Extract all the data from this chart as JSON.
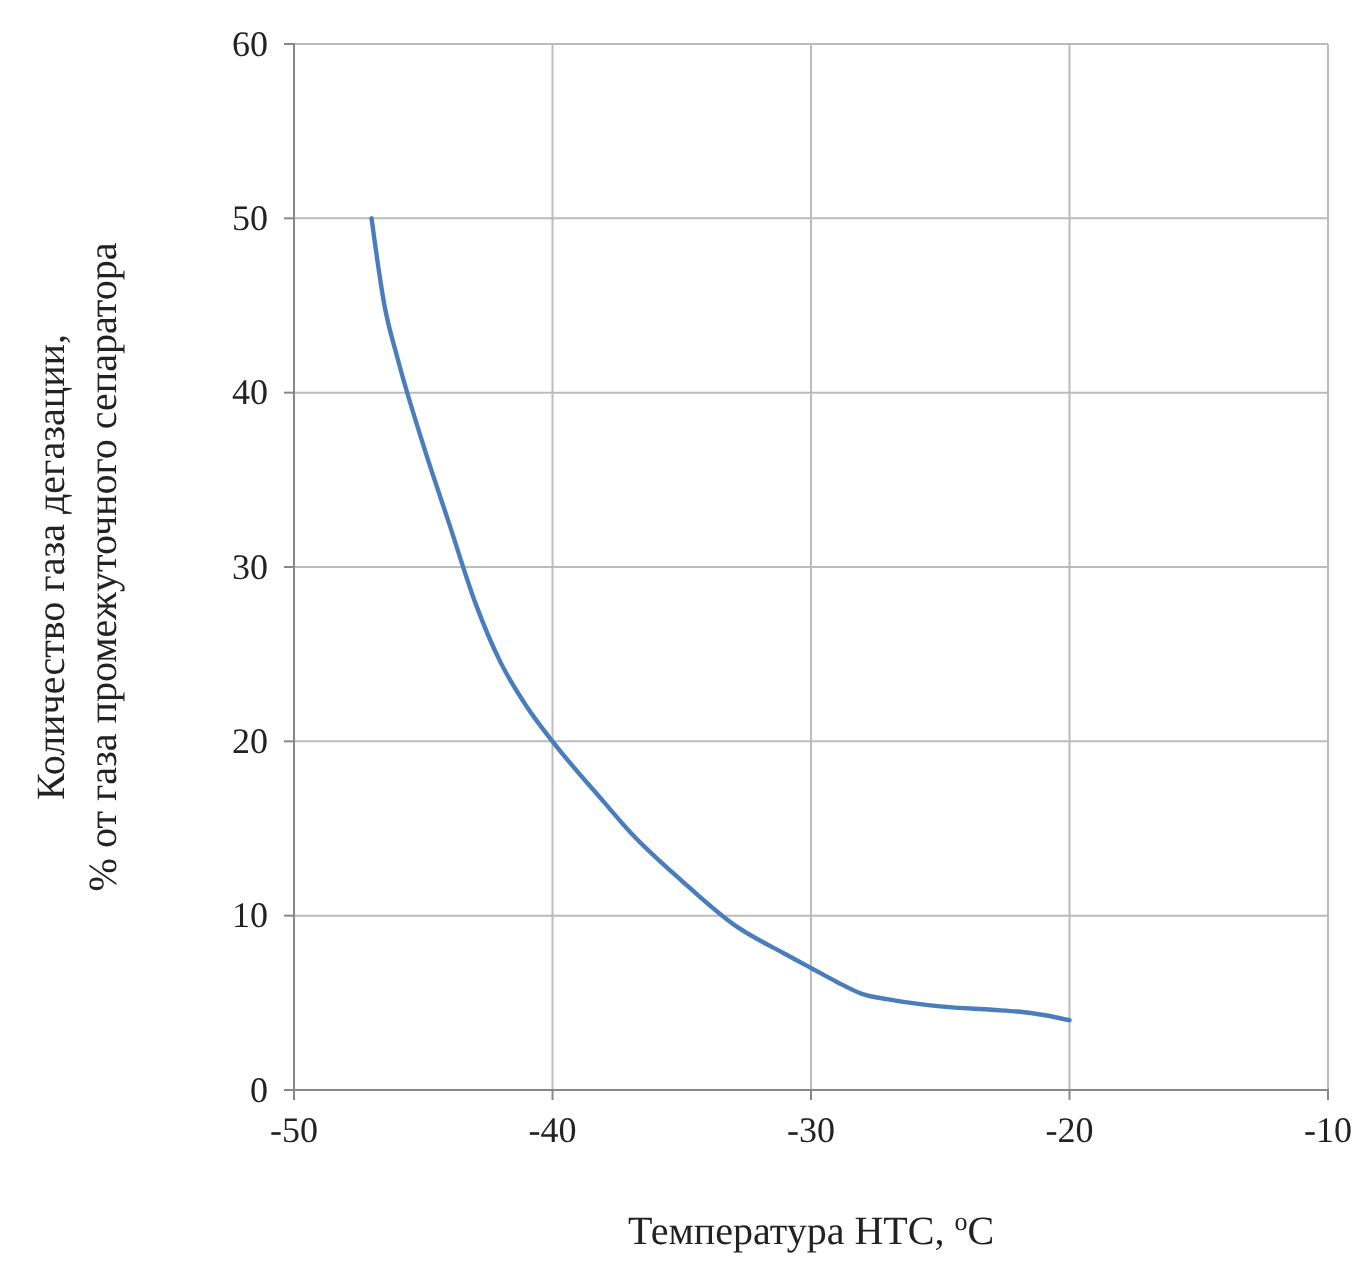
{
  "chart_data": {
    "type": "line",
    "xlabel": "Температура НТС, $^{o}$С",
    "ylabel": "Количество газа дегазации,\n% от газа промежуточного сепаратора",
    "series": [
      {
        "color": "#4a7ebb",
        "x": [
          -47,
          -46.5,
          -46,
          -45,
          -44,
          -43,
          -42,
          -41,
          -40,
          -38,
          -37,
          -35,
          -33,
          -31,
          -30,
          -29,
          -28,
          -27,
          -25,
          -23,
          -22,
          -21,
          -20
        ],
        "values": [
          50,
          45,
          42,
          37,
          32.5,
          28,
          24.5,
          22,
          20,
          16.5,
          14.8,
          12,
          9.5,
          7.8,
          7,
          6.2,
          5.5,
          5.2,
          4.8,
          4.6,
          4.5,
          4.3,
          4
        ]
      }
    ],
    "xlim": [
      -50,
      -10
    ],
    "xticks": [
      -50,
      -40,
      -30,
      -20,
      -10
    ],
    "ylim": [
      0,
      60
    ],
    "yticks": [
      0,
      10,
      20,
      30,
      40,
      50,
      60
    ],
    "grid": true,
    "marker": "none",
    "line_style": "solid"
  }
}
